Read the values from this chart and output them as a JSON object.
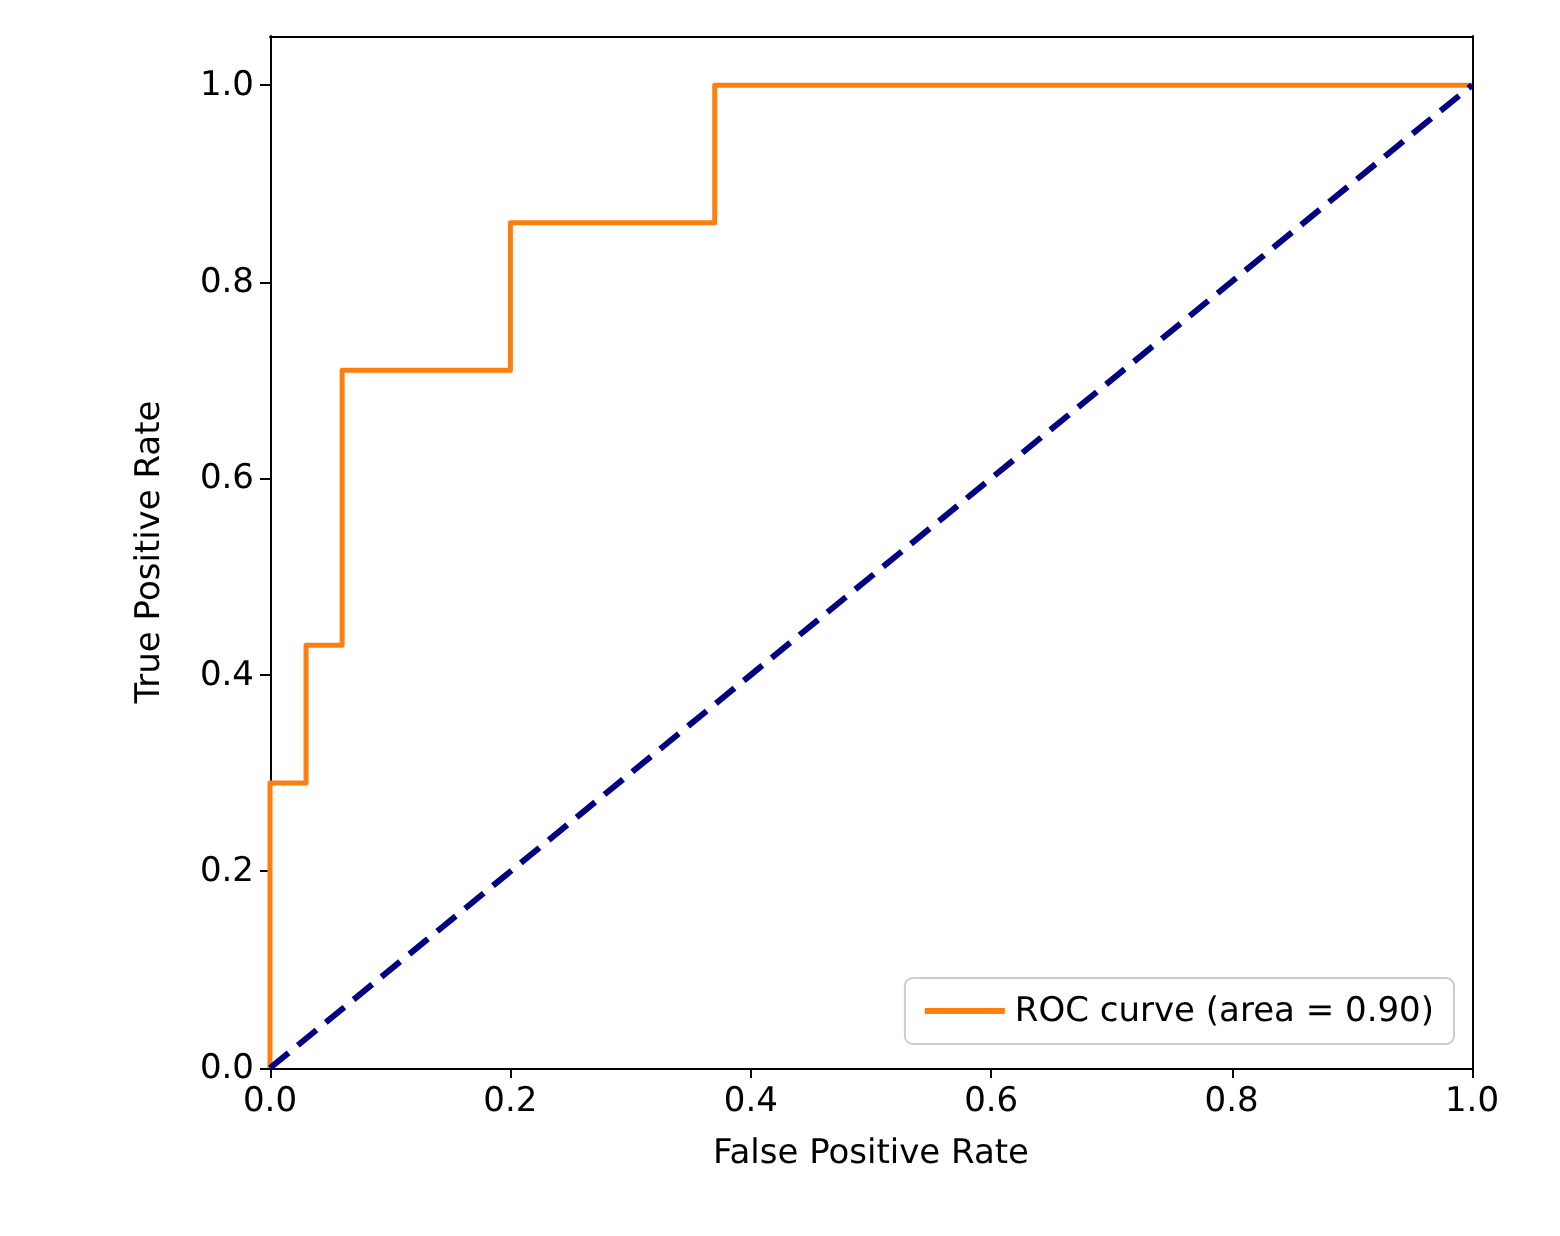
{
  "chart_data": {
    "type": "line",
    "xlabel": "False Positive Rate",
    "ylabel": "True Positive Rate",
    "xlim": [
      0,
      1
    ],
    "ylim": [
      0,
      1.05
    ],
    "xticks": [
      {
        "value": 0,
        "label": "0.0"
      },
      0.2,
      0.4,
      0.6,
      0.8,
      {
        "value": 1,
        "label": "1.0"
      }
    ],
    "yticks": [
      {
        "value": 0,
        "label": "0.0"
      },
      0.2,
      0.4,
      0.6,
      0.8,
      {
        "value": 1,
        "label": "1.0"
      }
    ],
    "series": [
      {
        "name": "ROC curve (area = 0.90)",
        "color": "#ff7f0e",
        "line_style": "solid",
        "x": [
          0,
          0,
          0.03,
          0.03,
          0.06,
          0.06,
          0.2,
          0.2,
          0.37,
          0.37,
          1
        ],
        "values": [
          0,
          0.29,
          0.29,
          0.43,
          0.43,
          0.71,
          0.71,
          0.86,
          0.86,
          1,
          1
        ]
      },
      {
        "color": "#000080",
        "line_style": "dashed",
        "x": [
          0,
          1
        ],
        "values": [
          0,
          1
        ]
      }
    ],
    "marker": "none",
    "grid": false,
    "legend": "bottom right"
  }
}
